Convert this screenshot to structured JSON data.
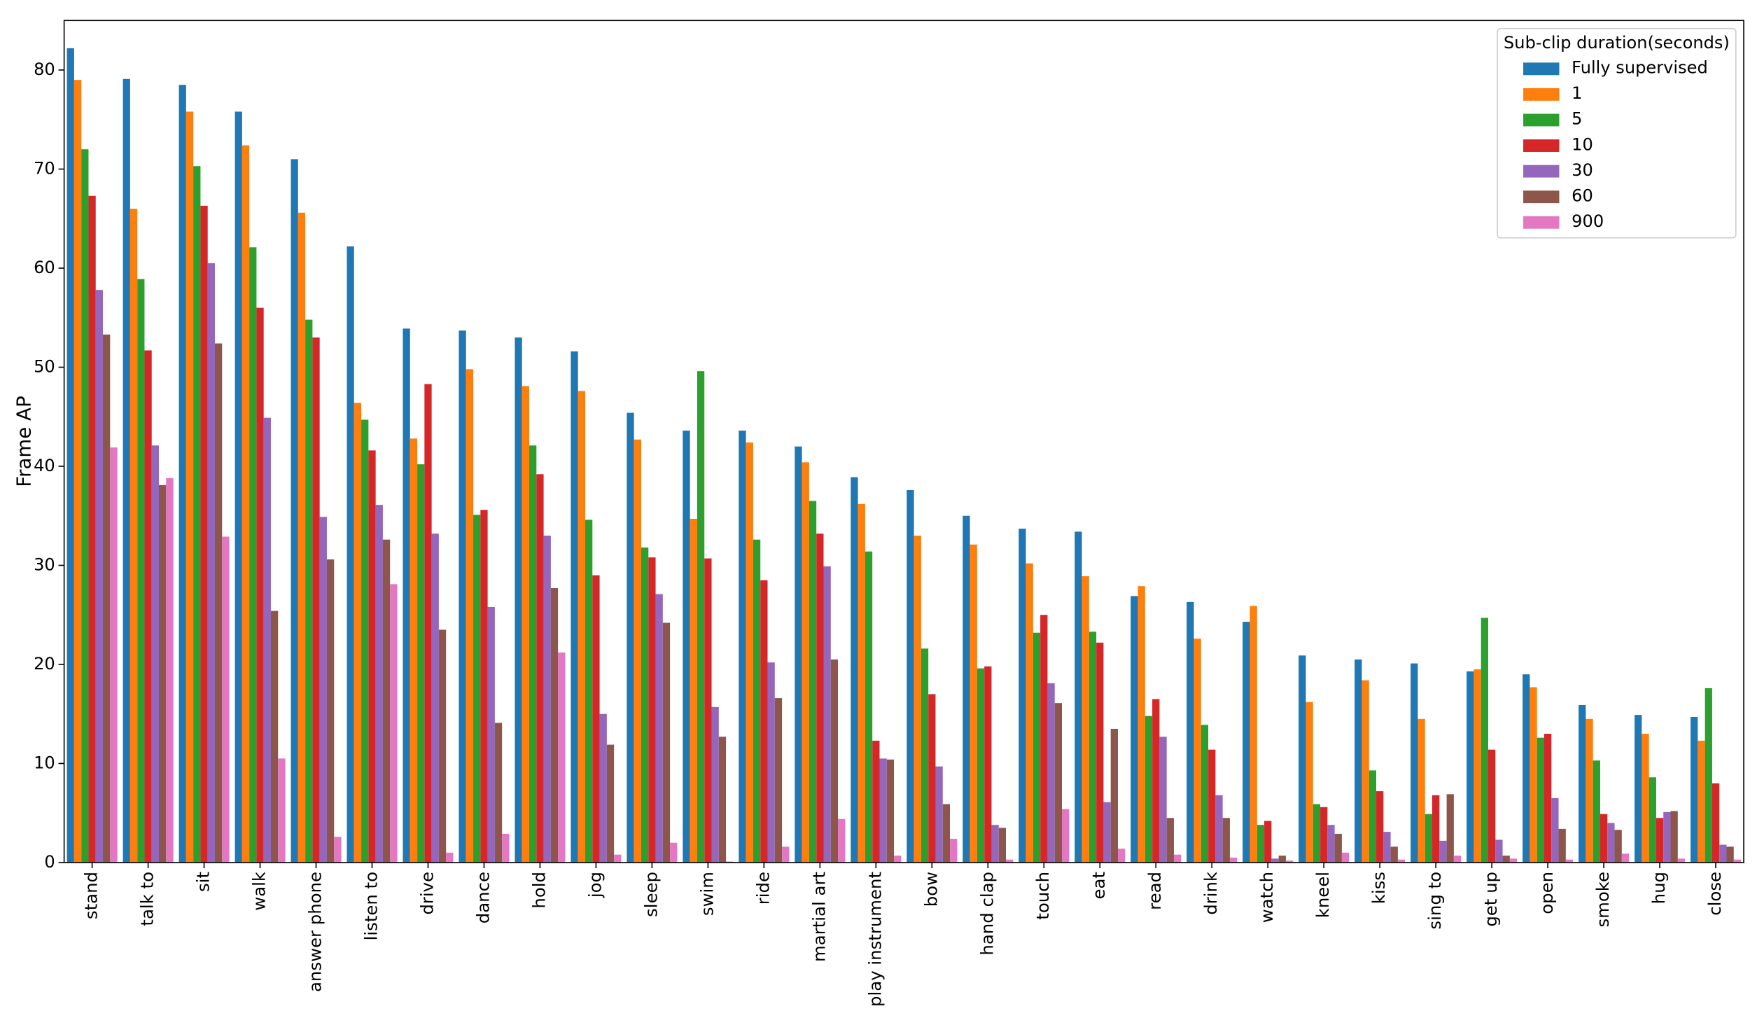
{
  "chart_data": {
    "type": "grouped_bar",
    "y_label": "Frame AP",
    "ylim": [
      0,
      85
    ],
    "yticks": [
      0,
      10,
      20,
      30,
      40,
      50,
      60,
      70,
      80
    ],
    "legend_title": "Sub-clip duration(seconds)",
    "legend_position": "upper right",
    "categories": [
      "stand",
      "talk to",
      "sit",
      "walk",
      "answer phone",
      "listen to",
      "drive",
      "dance",
      "hold",
      "jog",
      "sleep",
      "swim",
      "ride",
      "martial art",
      "play instrument",
      "bow",
      "hand clap",
      "touch",
      "eat",
      "read",
      "drink",
      "watch",
      "kneel",
      "kiss",
      "sing to",
      "get up",
      "open",
      "smoke",
      "hug",
      "close"
    ],
    "series": [
      {
        "name": "Fully supervised",
        "color": "#1f77b4",
        "values": [
          82.2,
          79.1,
          78.5,
          75.8,
          71,
          62.2,
          53.9,
          53.7,
          53,
          51.6,
          45.4,
          43.6,
          43.6,
          42,
          38.9,
          37.6,
          35,
          33.7,
          33.4,
          26.9,
          26.3,
          24.3,
          20.9,
          20.5,
          20.1,
          19.3,
          19,
          15.9,
          14.9,
          14.7
        ]
      },
      {
        "name": "1",
        "color": "#ff7f0e",
        "values": [
          79,
          66,
          75.8,
          72.4,
          65.6,
          46.4,
          42.8,
          49.8,
          48.1,
          47.6,
          42.7,
          34.7,
          42.4,
          40.4,
          36.2,
          33,
          32.1,
          30.2,
          28.9,
          27.9,
          22.6,
          25.9,
          16.2,
          18.4,
          14.5,
          19.5,
          17.7,
          14.5,
          13,
          12.3
        ]
      },
      {
        "name": "5",
        "color": "#2ca02c",
        "values": [
          72,
          58.9,
          70.3,
          62.1,
          54.8,
          44.7,
          40.2,
          35.1,
          42.1,
          34.6,
          31.8,
          49.6,
          32.6,
          36.5,
          31.4,
          21.6,
          19.6,
          23.2,
          23.3,
          14.8,
          13.9,
          3.8,
          5.9,
          9.3,
          4.9,
          24.7,
          12.6,
          10.3,
          8.6,
          17.6
        ]
      },
      {
        "name": "10",
        "color": "#d62728",
        "values": [
          67.3,
          51.7,
          66.3,
          56,
          53,
          41.6,
          48.3,
          35.6,
          39.2,
          29,
          30.8,
          30.7,
          28.5,
          33.2,
          12.3,
          17,
          19.8,
          25,
          22.2,
          16.5,
          11.4,
          4.2,
          5.6,
          7.2,
          6.8,
          11.4,
          13,
          4.9,
          4.5,
          8
        ]
      },
      {
        "name": "30",
        "color": "#9467bd",
        "values": [
          57.8,
          42.1,
          60.5,
          44.9,
          34.9,
          36.1,
          33.2,
          25.8,
          33,
          15,
          27.1,
          15.7,
          20.2,
          29.9,
          10.5,
          9.7,
          3.8,
          18.1,
          6.1,
          12.7,
          6.8,
          0.4,
          3.8,
          3.1,
          2.2,
          2.3,
          6.5,
          4,
          5.1,
          1.8
        ]
      },
      {
        "name": "60",
        "color": "#8c564b",
        "values": [
          53.3,
          38.1,
          52.4,
          25.4,
          30.6,
          32.6,
          23.5,
          14.1,
          27.7,
          11.9,
          24.2,
          12.7,
          16.6,
          20.5,
          10.4,
          5.9,
          3.5,
          16.1,
          13.5,
          4.5,
          4.5,
          0.7,
          2.9,
          1.6,
          6.9,
          0.7,
          3.4,
          3.3,
          5.2,
          1.6
        ]
      },
      {
        "name": "900",
        "color": "#e377c2",
        "values": [
          41.9,
          38.8,
          32.9,
          10.5,
          2.6,
          28.1,
          1,
          2.9,
          21.2,
          0.8,
          2,
          0.1,
          1.6,
          4.4,
          0.7,
          2.4,
          0.3,
          5.4,
          1.4,
          0.8,
          0.5,
          0.2,
          1,
          0.3,
          0.7,
          0.4,
          0.3,
          0.9,
          0.4,
          0.3
        ]
      }
    ]
  }
}
